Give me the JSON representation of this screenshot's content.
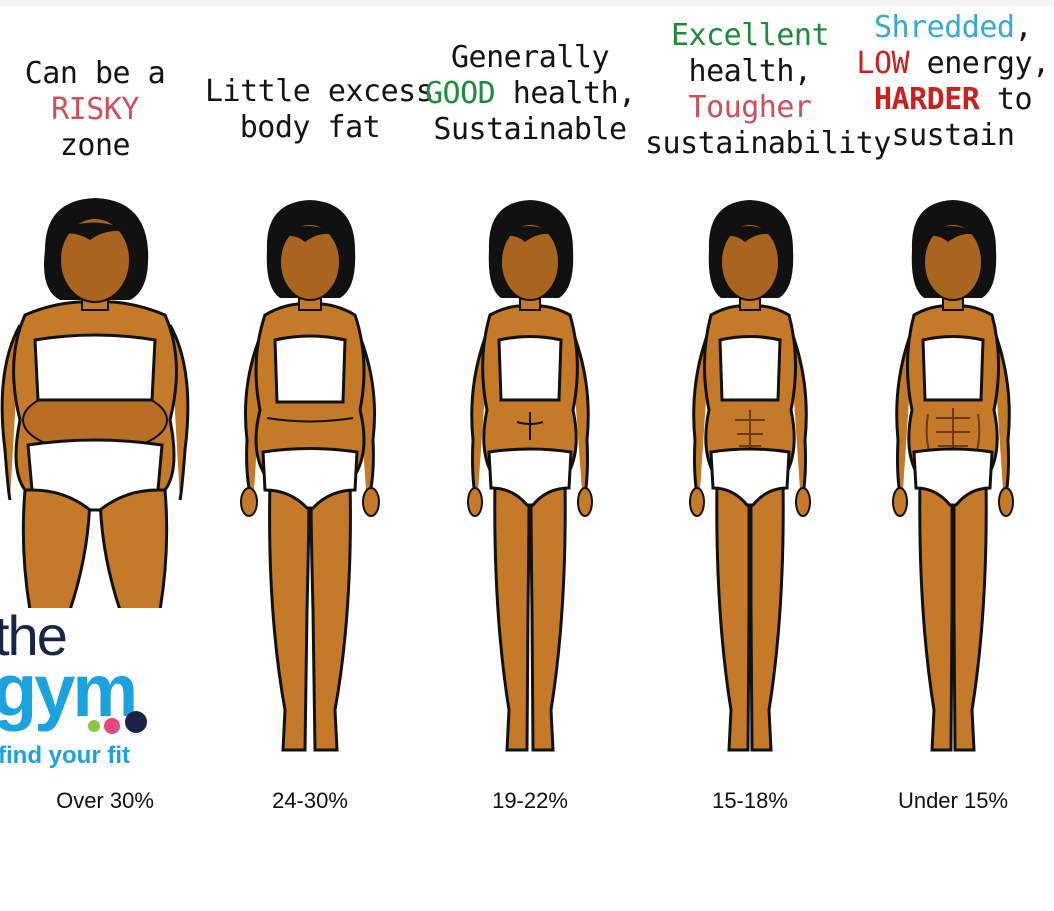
{
  "colors": {
    "text": "#141414",
    "risky": "#d0505a",
    "good": "#1f8a3a",
    "tougher": "#d0505a",
    "shredded": "#3aa8d6",
    "low_harder": "#cc1f1f",
    "skin": "#c57a2a",
    "skin_shade": "#a9641f",
    "hair": "#111111",
    "underwear": "#ffffff",
    "logo_navy": "#1a2447",
    "logo_blue": "#1aa3df",
    "logo_green": "#8cc63f",
    "logo_pink": "#e8487d"
  },
  "columns": [
    {
      "caption": [
        "Can be a",
        "RISKY",
        "zone"
      ],
      "percentage": "Over 30%"
    },
    {
      "caption": [
        "Little excess",
        "body fat"
      ],
      "percentage": "24-30%"
    },
    {
      "caption_line1": "Generally",
      "caption_line2_highlight": "GOOD",
      "caption_line2_rest": " health,",
      "caption_line3": "Sustainable",
      "percentage": "19-22%"
    },
    {
      "caption_line1": "Excellent",
      "caption_line2": "health,",
      "caption_line3": "Tougher",
      "caption_line4": "sustainability",
      "percentage": "15-18%"
    },
    {
      "caption_line1_highlight": "Shredded",
      "caption_line1_rest": ",",
      "caption_line2_highlight": "LOW",
      "caption_line2_rest": " energy,",
      "caption_line3_highlight": "HARDER",
      "caption_line3_rest": " to",
      "caption_line4": "sustain",
      "percentage": "Under 15%"
    }
  ],
  "logo": {
    "line1": "the",
    "line2": "gym",
    "tagline": "find your fit"
  }
}
